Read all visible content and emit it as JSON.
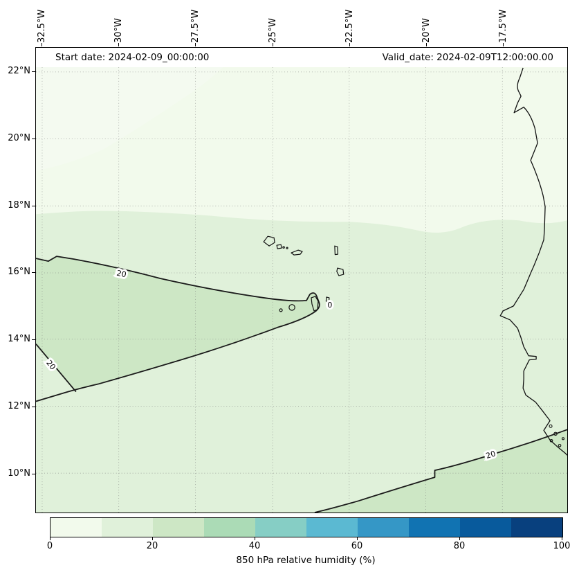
{
  "header": {
    "start_date": "Start date: 2024-02-09_00:00:00",
    "valid_date": "Valid_date: 2024-02-09T12:00:00.00"
  },
  "axes": {
    "lon_ticks": [
      {
        "label": "32.5°W"
      },
      {
        "label": "30°W"
      },
      {
        "label": "27.5°W"
      },
      {
        "label": "25°W"
      },
      {
        "label": "22.5°W"
      },
      {
        "label": "20°W"
      },
      {
        "label": "17.5°W"
      }
    ],
    "lat_ticks": [
      {
        "label": "22°N"
      },
      {
        "label": "20°N"
      },
      {
        "label": "18°N"
      },
      {
        "label": "16°N"
      },
      {
        "label": "14°N"
      },
      {
        "label": "12°N"
      },
      {
        "label": "10°N"
      }
    ]
  },
  "colorbar": {
    "label": "850 hPa relative humidity (%)",
    "tick_labels": [
      "0",
      "20",
      "40",
      "60",
      "80",
      "100"
    ],
    "colors": [
      "#f2faec",
      "#e0f1da",
      "#cde7c5",
      "#abdbb6",
      "#86cec5",
      "#5bb9d2",
      "#3597c6",
      "#1173b2",
      "#085a9c",
      "#08407e"
    ]
  },
  "map_colors": {
    "lightest_patch": "#f4faf0",
    "coast": "#111111",
    "contour": "#1a1a1a",
    "grid": "#777777"
  },
  "contours": {
    "labels": [
      {
        "text": "20"
      },
      {
        "text": "20"
      },
      {
        "text": "20"
      },
      {
        "text": "0"
      }
    ]
  },
  "chart_data": {
    "type": "heatmap",
    "title": "850 hPa relative humidity (%)",
    "field": "relative humidity at 850 hPa",
    "units": "%",
    "start_date": "2024-02-09_00:00:00",
    "valid_date": "2024-02-09T12:00:00.00",
    "x": {
      "label": "longitude",
      "tick_labels": [
        "32.5°W",
        "30°W",
        "27.5°W",
        "25°W",
        "22.5°W",
        "20°W",
        "17.5°W"
      ],
      "range_deg_west": [
        32.7,
        15.3
      ]
    },
    "y": {
      "label": "latitude",
      "tick_labels": [
        "22°N",
        "20°N",
        "18°N",
        "16°N",
        "14°N",
        "12°N",
        "10°N"
      ],
      "range_deg_north": [
        8.8,
        22.7
      ]
    },
    "colorbar": {
      "ticks": [
        0,
        20,
        40,
        60,
        80,
        100
      ],
      "levels": [
        0,
        10,
        20,
        30,
        40,
        50,
        60,
        70,
        80,
        90,
        100
      ],
      "colors": [
        "#f2faec",
        "#e0f1da",
        "#cde7c5",
        "#abdbb6",
        "#86cec5",
        "#5bb9d2",
        "#3597c6",
        "#1173b2",
        "#085a9c",
        "#08407e"
      ],
      "orientation": "horizontal",
      "position": "bottom"
    },
    "labeled_contour_levels": [
      20,
      0
    ],
    "regions": [
      {
        "band": "0-10 %",
        "where": "northern part of domain, roughly north of 18°N"
      },
      {
        "band": "10-20 %",
        "where": "central band covering most of the domain including Cape Verde islands"
      },
      {
        "band": "20-30 %",
        "where": "tongue from the west edge between ~12.5°N and ~16.5°N reaching the Cape Verde islands; and the southeastern corner south of ~10°N near the West African coast"
      }
    ],
    "geography": "Eastern tropical North Atlantic with Cape Verde archipelago and West African coastline (Mauritania, Senegal, Gambia, Guinea-Bissau)",
    "grid": "dotted graticule every 2.5° longitude and 2° latitude",
    "legend_position": "bottom"
  }
}
